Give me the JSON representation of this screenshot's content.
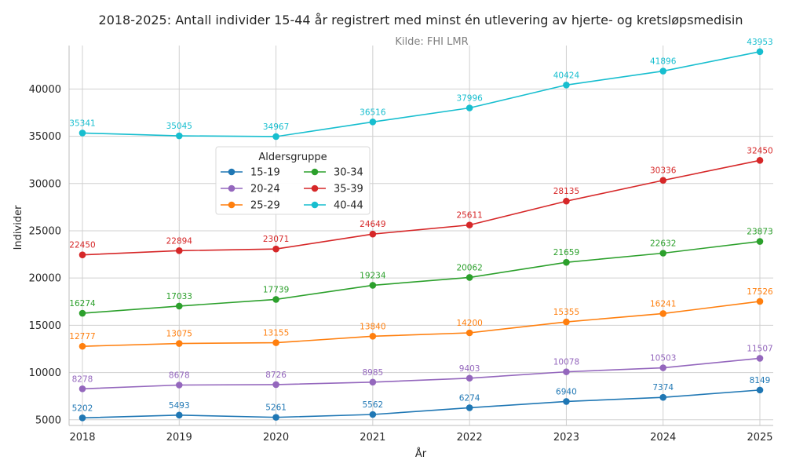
{
  "chart_data": {
    "type": "line",
    "title": "2018-2025: Antall individer 15-44 år registrert med minst én utlevering av hjerte- og kretsløpsmedisin",
    "subtitle": "Kilde: FHI LMR",
    "xlabel": "År",
    "ylabel": "Individer",
    "x": [
      2018,
      2019,
      2020,
      2021,
      2022,
      2023,
      2024,
      2025
    ],
    "x_tick_labels": [
      "2018",
      "2019",
      "2020",
      "2021",
      "2022",
      "2023",
      "2024",
      "2025"
    ],
    "y_ticks": [
      5000,
      10000,
      15000,
      20000,
      25000,
      30000,
      35000,
      40000
    ],
    "ylim": [
      4400,
      44600
    ],
    "grid": true,
    "legend_title": "Aldersgruppe",
    "legend_position": "upper-left-center",
    "series": [
      {
        "name": "15-19",
        "color": "#1f77b4",
        "values": [
          5202,
          5493,
          5261,
          5562,
          6274,
          6940,
          7374,
          8149
        ]
      },
      {
        "name": "20-24",
        "color": "#9467bd",
        "values": [
          8278,
          8678,
          8726,
          8985,
          9403,
          10078,
          10503,
          11507
        ]
      },
      {
        "name": "25-29",
        "color": "#ff7f0e",
        "values": [
          12777,
          13075,
          13155,
          13840,
          14200,
          15355,
          16241,
          17526
        ]
      },
      {
        "name": "30-34",
        "color": "#2ca02c",
        "values": [
          16274,
          17033,
          17739,
          19234,
          20062,
          21659,
          22632,
          23873
        ]
      },
      {
        "name": "35-39",
        "color": "#d62728",
        "values": [
          22450,
          22894,
          23071,
          24649,
          25611,
          28135,
          30336,
          32450
        ]
      },
      {
        "name": "40-44",
        "color": "#17becf",
        "values": [
          35341,
          35045,
          34967,
          36516,
          37996,
          40424,
          41896,
          43953
        ]
      }
    ],
    "legend_order": [
      "15-19",
      "20-24",
      "25-29",
      "30-34",
      "35-39",
      "40-44"
    ]
  }
}
